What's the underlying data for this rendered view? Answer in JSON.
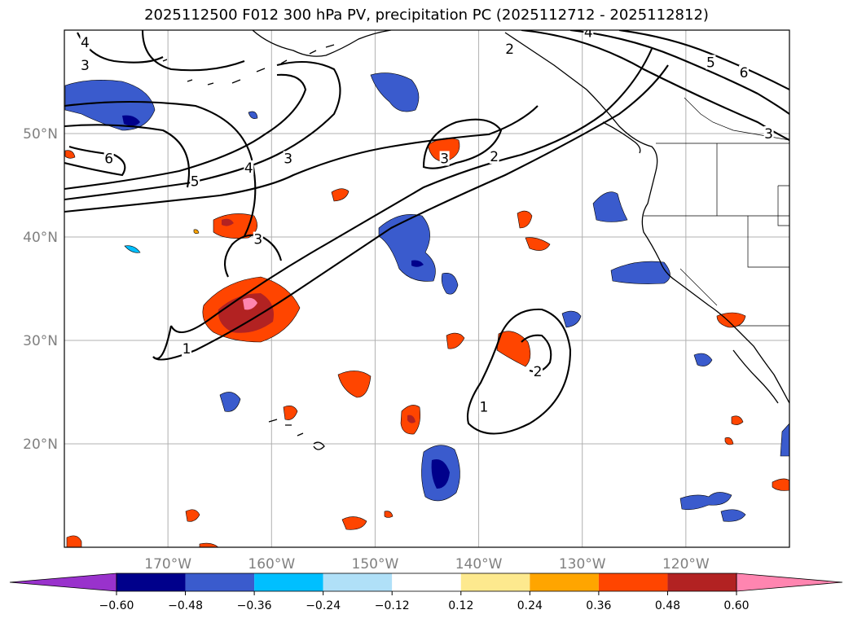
{
  "title": "2025112500 F012 300 hPa PV, precipitation PC (2025112712 - 2025112812)",
  "map": {
    "lon_range": [
      -180,
      -110
    ],
    "lat_range": [
      10,
      60
    ],
    "lon_ticks": [
      {
        "value": -170,
        "label": "170°W"
      },
      {
        "value": -160,
        "label": "160°W"
      },
      {
        "value": -150,
        "label": "150°W"
      },
      {
        "value": -140,
        "label": "140°W"
      },
      {
        "value": -130,
        "label": "130°W"
      },
      {
        "value": -120,
        "label": "120°W"
      }
    ],
    "lat_ticks": [
      {
        "value": 20,
        "label": "20°N"
      },
      {
        "value": 30,
        "label": "30°N"
      },
      {
        "value": 40,
        "label": "40°N"
      },
      {
        "value": 50,
        "label": "50°N"
      }
    ],
    "gridlines": true,
    "contour_labels": [
      {
        "text": "4",
        "lon": -178,
        "lat": 58.8
      },
      {
        "text": "3",
        "lon": -178,
        "lat": 56.6
      },
      {
        "text": "6",
        "lon": -175.7,
        "lat": 47.6
      },
      {
        "text": "5",
        "lon": -167.4,
        "lat": 45.4
      },
      {
        "text": "4",
        "lon": -162.2,
        "lat": 46.7
      },
      {
        "text": "3",
        "lon": -158.4,
        "lat": 47.6
      },
      {
        "text": "3",
        "lon": -161.3,
        "lat": 39.8
      },
      {
        "text": "1",
        "lon": -168.2,
        "lat": 29.2
      },
      {
        "text": "3",
        "lon": -143.3,
        "lat": 47.6
      },
      {
        "text": "2",
        "lon": -138.5,
        "lat": 47.8
      },
      {
        "text": "2",
        "lon": -137,
        "lat": 58.2
      },
      {
        "text": "4",
        "lon": -129.4,
        "lat": 59.8
      },
      {
        "text": "5",
        "lon": -117.6,
        "lat": 56.9
      },
      {
        "text": "6",
        "lon": -114.4,
        "lat": 55.9
      },
      {
        "text": "3",
        "lon": -112,
        "lat": 50
      },
      {
        "text": "2",
        "lon": -134.3,
        "lat": 27
      },
      {
        "text": "1",
        "lon": -139.5,
        "lat": 23.6
      }
    ]
  },
  "colorbar": {
    "levels": [
      "−0.60",
      "−0.48",
      "−0.36",
      "−0.24",
      "−0.12",
      "0.12",
      "0.24",
      "0.36",
      "0.48",
      "0.60"
    ],
    "colors": [
      "#9932cc",
      "#00008b",
      "#3a5bcd",
      "#00bfff",
      "#b0e0f8",
      "#ffffff",
      "#fde98e",
      "#ffa500",
      "#ff4500",
      "#b22222",
      "#ff85b0"
    ],
    "extend": "both"
  }
}
